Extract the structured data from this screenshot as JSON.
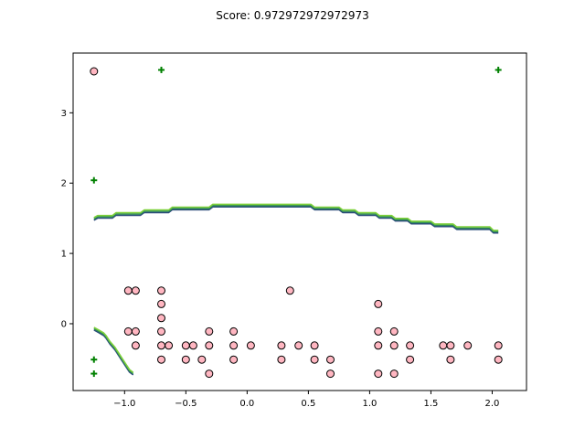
{
  "chart_data": {
    "type": "scatter",
    "title": "Score: 0.972972972972973",
    "xlabel": "",
    "ylabel": "",
    "xlim": [
      -1.42,
      2.28
    ],
    "ylim": [
      -0.95,
      3.85
    ],
    "x_ticks": [
      -1.0,
      -0.5,
      0.0,
      0.5,
      1.0,
      1.5,
      2.0
    ],
    "x_tick_labels": [
      "−1.0",
      "−0.5",
      "0.0",
      "0.5",
      "1.0",
      "1.5",
      "2.0"
    ],
    "y_ticks": [
      0,
      1,
      2,
      3
    ],
    "y_tick_labels": [
      "0",
      "1",
      "2",
      "3"
    ],
    "grid": false,
    "colors": {
      "circle_fill": "#ffb6c1",
      "circle_edge": "#000000",
      "plus_marker": "#008000",
      "boundary_dark": "#2b4a7a",
      "boundary_mid": "#2e8b57",
      "boundary_light": "#7fd13b"
    },
    "series": [
      {
        "marker": "circle",
        "points": [
          [
            -1.25,
            3.59
          ],
          [
            -0.97,
            0.47
          ],
          [
            -0.91,
            0.47
          ],
          [
            -0.7,
            0.47
          ],
          [
            -0.7,
            0.28
          ],
          [
            -0.7,
            0.08
          ],
          [
            -0.7,
            -0.11
          ],
          [
            -0.7,
            -0.31
          ],
          [
            -0.7,
            -0.51
          ],
          [
            0.35,
            0.47
          ],
          [
            1.07,
            0.28
          ],
          [
            -0.97,
            -0.11
          ],
          [
            -0.91,
            -0.11
          ],
          [
            -0.91,
            -0.31
          ],
          [
            -0.64,
            -0.31
          ],
          [
            -0.5,
            -0.31
          ],
          [
            -0.44,
            -0.31
          ],
          [
            -0.31,
            -0.31
          ],
          [
            -0.31,
            -0.11
          ],
          [
            -0.5,
            -0.51
          ],
          [
            -0.37,
            -0.51
          ],
          [
            -0.31,
            -0.71
          ],
          [
            -0.11,
            -0.11
          ],
          [
            -0.11,
            -0.31
          ],
          [
            -0.11,
            -0.51
          ],
          [
            0.03,
            -0.31
          ],
          [
            0.28,
            -0.31
          ],
          [
            0.28,
            -0.51
          ],
          [
            0.42,
            -0.31
          ],
          [
            0.55,
            -0.31
          ],
          [
            0.55,
            -0.51
          ],
          [
            0.68,
            -0.51
          ],
          [
            0.68,
            -0.71
          ],
          [
            1.07,
            -0.11
          ],
          [
            1.07,
            -0.31
          ],
          [
            1.07,
            -0.71
          ],
          [
            1.2,
            -0.11
          ],
          [
            1.2,
            -0.31
          ],
          [
            1.2,
            -0.71
          ],
          [
            1.33,
            -0.31
          ],
          [
            1.33,
            -0.51
          ],
          [
            1.6,
            -0.31
          ],
          [
            1.66,
            -0.31
          ],
          [
            1.66,
            -0.51
          ],
          [
            1.8,
            -0.31
          ],
          [
            2.05,
            -0.31
          ],
          [
            2.05,
            -0.51
          ]
        ]
      },
      {
        "marker": "plus",
        "points": [
          [
            -0.7,
            3.61
          ],
          [
            2.05,
            3.61
          ],
          [
            -1.25,
            2.04
          ],
          [
            -1.25,
            -0.51
          ],
          [
            -1.25,
            -0.71
          ]
        ]
      }
    ],
    "boundaries": [
      {
        "name": "upper",
        "points": [
          [
            -1.25,
            1.49
          ],
          [
            -1.22,
            1.52
          ],
          [
            -1.1,
            1.52
          ],
          [
            -1.07,
            1.56
          ],
          [
            -0.87,
            1.56
          ],
          [
            -0.84,
            1.6
          ],
          [
            -0.64,
            1.6
          ],
          [
            -0.61,
            1.64
          ],
          [
            -0.31,
            1.64
          ],
          [
            -0.28,
            1.68
          ],
          [
            0.52,
            1.68
          ],
          [
            0.55,
            1.64
          ],
          [
            0.75,
            1.64
          ],
          [
            0.78,
            1.6
          ],
          [
            0.88,
            1.6
          ],
          [
            0.91,
            1.56
          ],
          [
            1.05,
            1.56
          ],
          [
            1.08,
            1.52
          ],
          [
            1.18,
            1.52
          ],
          [
            1.21,
            1.48
          ],
          [
            1.31,
            1.48
          ],
          [
            1.34,
            1.44
          ],
          [
            1.5,
            1.44
          ],
          [
            1.53,
            1.4
          ],
          [
            1.68,
            1.4
          ],
          [
            1.71,
            1.36
          ],
          [
            1.98,
            1.36
          ],
          [
            2.01,
            1.31
          ],
          [
            2.05,
            1.31
          ]
        ]
      },
      {
        "name": "lower",
        "points": [
          [
            -1.25,
            -0.07
          ],
          [
            -1.21,
            -0.11
          ],
          [
            -1.17,
            -0.15
          ],
          [
            -1.15,
            -0.19
          ],
          [
            -1.12,
            -0.27
          ],
          [
            -1.08,
            -0.35
          ],
          [
            -1.05,
            -0.43
          ],
          [
            -1.02,
            -0.51
          ],
          [
            -0.99,
            -0.59
          ],
          [
            -0.96,
            -0.67
          ],
          [
            -0.93,
            -0.71
          ]
        ]
      }
    ]
  }
}
